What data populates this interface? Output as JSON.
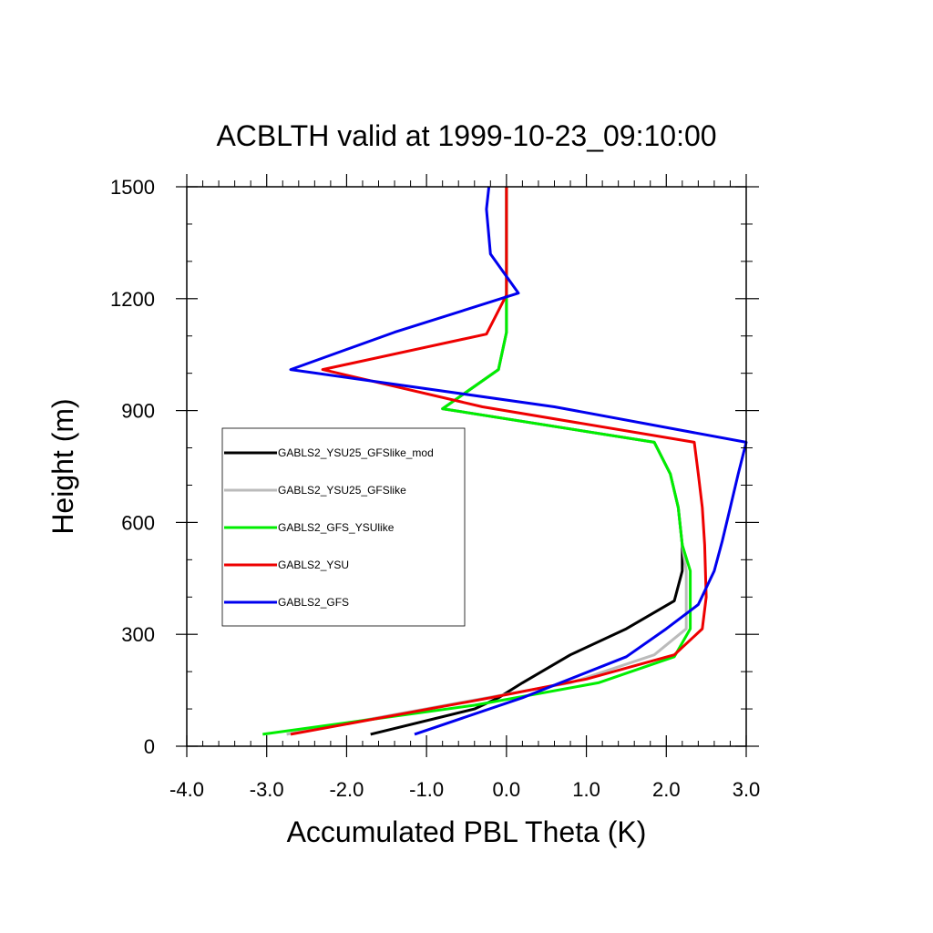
{
  "chart_data": {
    "type": "line",
    "title": "ACBLTH valid at 1999-10-23_09:10:00",
    "xlabel": "Accumulated PBL Theta (K)",
    "ylabel": "Height (m)",
    "xlim": [
      -4.0,
      3.0
    ],
    "ylim": [
      0,
      1500
    ],
    "x_ticks": [
      "-4.0",
      "-3.0",
      "-2.0",
      "-1.0",
      "0.0",
      "1.0",
      "2.0",
      "3.0"
    ],
    "y_ticks": [
      "0",
      "300",
      "600",
      "900",
      "1200",
      "1500"
    ],
    "grid": false,
    "legend_position": "left",
    "series": [
      {
        "name": "GABLS2_YSU25_GFSlike_mod",
        "color": "#000000",
        "x": [
          -1.7,
          -0.4,
          -0.1,
          0.2,
          0.8,
          1.5,
          2.1,
          2.2,
          2.2,
          2.15,
          2.05,
          1.85,
          -0.8,
          -0.1,
          0.0,
          0.0,
          0.0,
          0.0
        ],
        "y": [
          32,
          100,
          130,
          170,
          245,
          315,
          390,
          470,
          540,
          640,
          730,
          815,
          905,
          1010,
          1110,
          1210,
          1300,
          1500
        ]
      },
      {
        "name": "GABLS2_YSU25_GFSlike",
        "color": "#bbbbbb",
        "x": [
          -2.75,
          -0.5,
          0.8,
          1.85,
          2.25,
          2.25,
          2.2,
          2.15,
          2.05,
          1.85,
          -0.8,
          -0.1,
          0.0,
          0.0,
          0.0,
          0.0
        ],
        "y": [
          32,
          120,
          170,
          245,
          315,
          470,
          540,
          640,
          730,
          815,
          905,
          1010,
          1110,
          1210,
          1300,
          1500
        ]
      },
      {
        "name": "GABLS2_GFS_YSUlike",
        "color": "#00ee00",
        "x": [
          -3.05,
          -0.4,
          1.15,
          2.1,
          2.3,
          2.3,
          2.2,
          2.15,
          2.05,
          1.85,
          -0.8,
          -0.1,
          0.0,
          0.0,
          0.0,
          0.0
        ],
        "y": [
          32,
          110,
          170,
          240,
          315,
          470,
          540,
          640,
          730,
          815,
          905,
          1010,
          1110,
          1210,
          1300,
          1500
        ]
      },
      {
        "name": "GABLS2_YSU",
        "color": "#ee0000",
        "x": [
          -2.7,
          -0.2,
          1.0,
          2.1,
          2.45,
          2.5,
          2.48,
          2.45,
          2.4,
          2.35,
          -0.3,
          -2.3,
          -0.25,
          0.0,
          0.0,
          0.0,
          0.0
        ],
        "y": [
          32,
          130,
          180,
          245,
          315,
          400,
          540,
          640,
          730,
          815,
          910,
          1010,
          1105,
          1210,
          1300,
          1400,
          1500
        ]
      },
      {
        "name": "GABLS2_GFS",
        "color": "#0000ee",
        "x": [
          -1.15,
          0.2,
          1.5,
          2.0,
          2.4,
          2.6,
          2.7,
          2.8,
          2.9,
          3.0,
          0.6,
          -2.7,
          -1.4,
          0.15,
          -0.2,
          -0.25,
          -0.22
        ],
        "y": [
          32,
          130,
          240,
          315,
          380,
          470,
          550,
          640,
          730,
          815,
          910,
          1010,
          1110,
          1215,
          1320,
          1440,
          1500
        ]
      }
    ]
  }
}
